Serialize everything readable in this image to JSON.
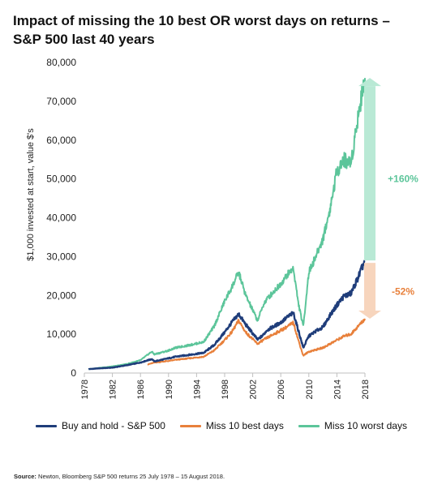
{
  "title_line1": "Impact of missing the 10 best OR worst days on returns –",
  "title_line2": "S&P 500 last 40 years",
  "source_label": "Source:",
  "source_text": "Newton, Bloomberg S&P 500 returns 25 July 1978 – 15 August 2018.",
  "chart_data": {
    "type": "line",
    "title": "Impact of missing the 10 best OR worst days on returns – S&P 500 last 40 years",
    "ylabel": "$1,000 invested at start, value $'s",
    "xlabel": "",
    "xlim": [
      1978,
      2018
    ],
    "ylim": [
      0,
      80000
    ],
    "yticks": [
      0,
      10000,
      20000,
      30000,
      40000,
      50000,
      60000,
      70000,
      80000
    ],
    "ytick_labels": [
      "0",
      "10,000",
      "20,000",
      "30,000",
      "40,000",
      "50,000",
      "60,000",
      "70,000",
      "80,000"
    ],
    "xticks": [
      1978,
      1982,
      1986,
      1990,
      1994,
      1998,
      2002,
      2006,
      2010,
      2014,
      2018
    ],
    "xtick_labels": [
      "1978",
      "1982",
      "1986",
      "1990",
      "1994",
      "1998",
      "2002",
      "2006",
      "2010",
      "2014",
      "2018"
    ],
    "grid": false,
    "legend_position": "bottom",
    "series": [
      {
        "name": "Buy and hold - S&P 500",
        "color": "#1f3d7a",
        "x": [
          1978.6,
          1980,
          1982,
          1984,
          1986,
          1987.6,
          1988,
          1990,
          1991,
          1993,
          1995,
          1996.5,
          1998,
          1999,
          2000,
          2001,
          2002.7,
          2003.5,
          2004,
          2005,
          2006,
          2007,
          2007.8,
          2008.5,
          2009.2,
          2010,
          2011,
          2012,
          2013,
          2014,
          2015,
          2016,
          2017,
          2018
        ],
        "y": [
          1000,
          1200,
          1400,
          2000,
          2700,
          3600,
          3000,
          3800,
          4200,
          4700,
          5200,
          7200,
          10500,
          13000,
          15200,
          12500,
          8600,
          9800,
          11000,
          12000,
          13000,
          14500,
          15500,
          11000,
          6500,
          9500,
          10800,
          11800,
          14800,
          17500,
          19800,
          20500,
          24500,
          29000
        ]
      },
      {
        "name": "Miss 10 best days",
        "color": "#e8803b",
        "x": [
          1987,
          1987.6,
          1988,
          1990,
          1991,
          1993,
          1995,
          1996.5,
          1998,
          1999,
          2000,
          2001,
          2002.7,
          2003.5,
          2004,
          2005,
          2006,
          2007,
          2007.8,
          2008.5,
          2009.2,
          2010,
          2011,
          2012,
          2013,
          2014,
          2015,
          2016,
          2017,
          2018
        ],
        "y": [
          2200,
          2500,
          2700,
          3100,
          3400,
          3800,
          4200,
          5800,
          8500,
          10500,
          13500,
          10500,
          7500,
          8500,
          9000,
          10000,
          11000,
          12000,
          13000,
          8500,
          4500,
          5500,
          6000,
          6500,
          7500,
          8500,
          9500,
          10000,
          12000,
          14000
        ]
      },
      {
        "name": "Miss 10 worst days",
        "color": "#5cc59a",
        "x": [
          1978.6,
          1980,
          1982,
          1984,
          1986,
          1987.6,
          1988,
          1990,
          1991,
          1993,
          1995,
          1996.5,
          1998,
          1999,
          2000,
          2001,
          2002.7,
          2003.5,
          2004,
          2005,
          2006,
          2007,
          2007.8,
          2008.5,
          2009.2,
          2010,
          2011,
          2012,
          2013,
          2014,
          2015,
          2016,
          2017,
          2018
        ],
        "y": [
          1000,
          1300,
          1700,
          2300,
          3300,
          5500,
          4800,
          5800,
          6500,
          7200,
          8000,
          12000,
          18500,
          22000,
          26000,
          20000,
          13500,
          17500,
          19000,
          21000,
          23000,
          25500,
          27000,
          18000,
          12000,
          26000,
          30000,
          34500,
          42000,
          52000,
          55000,
          54000,
          66000,
          76000
        ]
      }
    ],
    "annotations": [
      {
        "text": "+160%",
        "color": "#5cc59a",
        "arrow_from": 29000,
        "arrow_to": 76000
      },
      {
        "text": "-52%",
        "color": "#e8803b",
        "arrow_from": 29000,
        "arrow_to": 14000
      }
    ]
  }
}
